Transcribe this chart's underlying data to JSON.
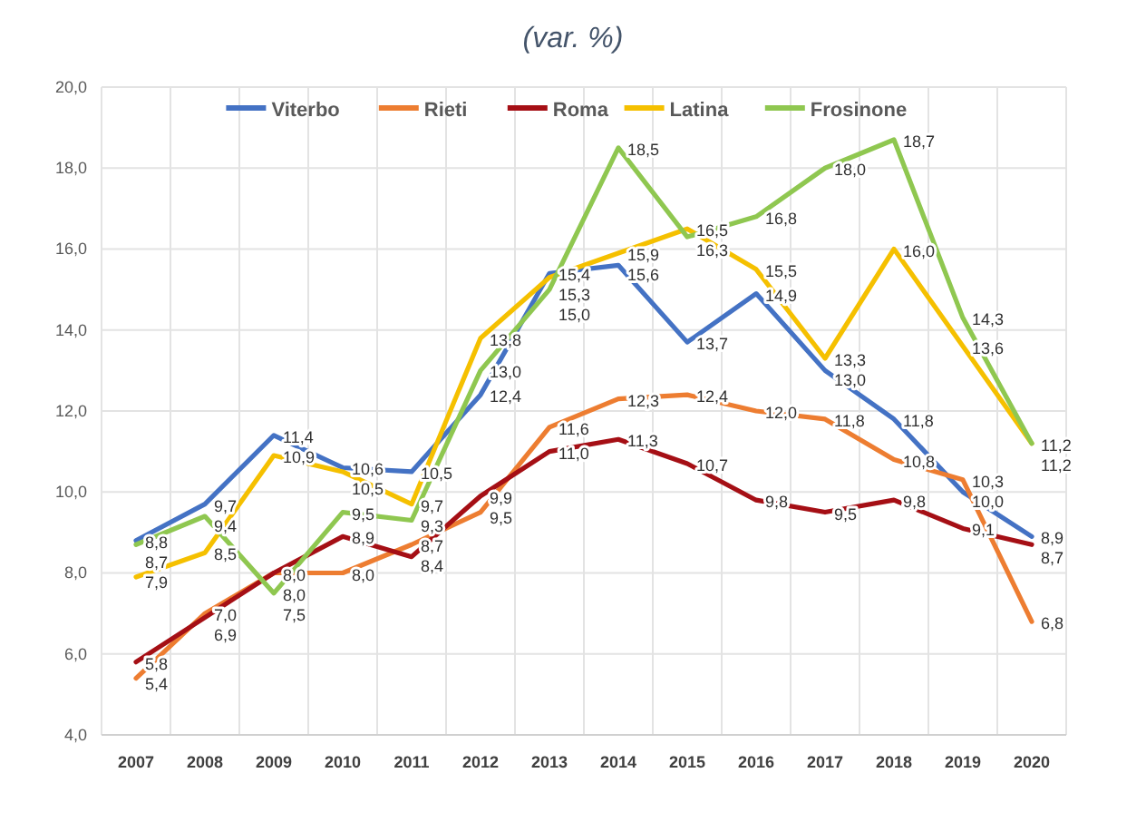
{
  "chart_data": {
    "type": "line",
    "title": "(var. %)",
    "categories": [
      "2007",
      "2008",
      "2009",
      "2010",
      "2011",
      "2012",
      "2013",
      "2014",
      "2015",
      "2016",
      "2017",
      "2018",
      "2019",
      "2020"
    ],
    "series": [
      {
        "name": "Viterbo",
        "color": "#4472c4",
        "values": [
          8.8,
          9.7,
          11.4,
          10.6,
          10.5,
          12.4,
          15.4,
          15.6,
          13.7,
          14.9,
          13.0,
          11.8,
          10.0,
          8.9
        ],
        "value_labels": [
          "8,8",
          "9,7",
          "11,4",
          "10,6",
          "10,5",
          "12,4",
          "15,4",
          "15,6",
          "13,7",
          "14,9",
          "13,0",
          "11,8",
          "10,0",
          "8,9"
        ]
      },
      {
        "name": "Rieti",
        "color": "#ed7d31",
        "values": [
          5.4,
          7.0,
          8.0,
          8.0,
          8.7,
          9.5,
          11.6,
          12.3,
          12.4,
          12.0,
          11.8,
          10.8,
          10.3,
          6.8
        ],
        "value_labels": [
          "5,4",
          "7,0",
          "8,0",
          "8,0",
          "8,7",
          "9,5",
          "11,6",
          "12,3",
          "12,4",
          "12,0",
          "11,8",
          "10,8",
          "10,3",
          "6,8"
        ]
      },
      {
        "name": "Roma",
        "color": "#a50f15",
        "values": [
          5.8,
          6.9,
          8.0,
          8.9,
          8.4,
          9.9,
          11.0,
          11.3,
          10.7,
          9.8,
          9.5,
          9.8,
          9.1,
          8.7
        ],
        "value_labels": [
          "5,8",
          "6,9",
          "8,0",
          "8,9",
          "8,4",
          "9,9",
          "11,0",
          "11,3",
          "10,7",
          "9,8",
          "9,5",
          "9,8",
          "9,1",
          "8,7"
        ]
      },
      {
        "name": "Latina",
        "color": "#f5c000",
        "values": [
          7.9,
          8.5,
          10.9,
          10.5,
          9.7,
          13.8,
          15.3,
          15.9,
          16.5,
          15.5,
          13.3,
          16.0,
          13.6,
          11.2
        ],
        "value_labels": [
          "7,9",
          "8,5",
          "10,9",
          "10,5",
          "9,7",
          "13,8",
          "15,3",
          "15,9",
          "16,5",
          "15,5",
          "13,3",
          "16,0",
          "13,6",
          "11,2"
        ]
      },
      {
        "name": "Frosinone",
        "color": "#8fc750",
        "values": [
          8.7,
          9.4,
          7.5,
          9.5,
          9.3,
          13.0,
          15.0,
          18.5,
          16.3,
          16.8,
          18.0,
          18.7,
          14.3,
          11.2
        ],
        "value_labels": [
          "8,7",
          "9,4",
          "7,5",
          "9,5",
          "9,3",
          "13,0",
          "15,0",
          "18,5",
          "16,3",
          "16,8",
          "18,0",
          "18,7",
          "14,3",
          "11,2"
        ]
      }
    ],
    "ylim": [
      4,
      20
    ],
    "yticks": [
      {
        "value": 4,
        "label": "4,0"
      },
      {
        "value": 6,
        "label": "6,0"
      },
      {
        "value": 8,
        "label": "8,0"
      },
      {
        "value": 10,
        "label": "10,0"
      },
      {
        "value": 12,
        "label": "12,0"
      },
      {
        "value": 14,
        "label": "14,0"
      },
      {
        "value": 16,
        "label": "16,0"
      },
      {
        "value": 18,
        "label": "18,0"
      },
      {
        "value": 20,
        "label": "20,0"
      }
    ],
    "grid": true,
    "legend": "top",
    "marker": "none",
    "line_style": "solid"
  }
}
